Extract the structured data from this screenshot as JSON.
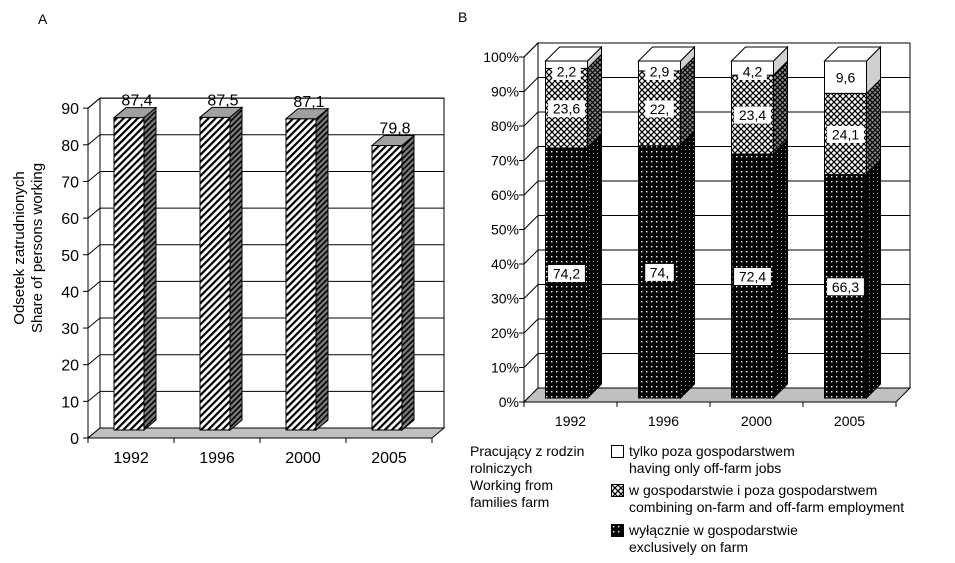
{
  "chart_data": [
    {
      "type": "bar",
      "panel_label": "A",
      "categories": [
        "1992",
        "1996",
        "2000",
        "2005"
      ],
      "values": [
        87.4,
        87.5,
        87.1,
        79.8
      ],
      "value_labels": [
        "87,4",
        "87,5",
        "87,1",
        "79,8"
      ],
      "ylabel": [
        "Odsetek zatrudnionych",
        "Share of persons working"
      ],
      "ylim": [
        0,
        90
      ],
      "yticks": [
        0,
        10,
        20,
        30,
        40,
        50,
        60,
        70,
        80,
        90
      ],
      "ytick_labels": [
        "0",
        "10",
        "20",
        "30",
        "40",
        "50",
        "60",
        "70",
        "80",
        "90"
      ],
      "grid": true,
      "style": "3d"
    },
    {
      "type": "bar",
      "stacked": true,
      "percent": true,
      "panel_label": "B",
      "categories": [
        "1992",
        "1996",
        "2000",
        "2005"
      ],
      "ylim": [
        0,
        100
      ],
      "yticks": [
        0,
        10,
        20,
        30,
        40,
        50,
        60,
        70,
        80,
        90,
        100
      ],
      "ytick_labels": [
        "0%",
        "10%",
        "20%",
        "30%",
        "40%",
        "50%",
        "60%",
        "70%",
        "80%",
        "90%",
        "100%"
      ],
      "grid": true,
      "style": "3d",
      "series": [
        {
          "name": "wyłącznie w gospodarstwie / exclusively on farm",
          "values": [
            74.2,
            74.0,
            72.4,
            66.3
          ],
          "labels": [
            "74,2",
            "74,",
            "72,4",
            "66,3"
          ]
        },
        {
          "name": "w gospodarstwie i poza gospodarstwem / combining on-farm and off-farm employment",
          "values": [
            23.6,
            22.0,
            23.4,
            24.1
          ],
          "labels": [
            "23,6",
            "22,",
            "23,4",
            "24,1"
          ]
        },
        {
          "name": "tylko poza gospodarstwem / having only off-farm jobs",
          "values": [
            2.2,
            2.9,
            4.2,
            9.6
          ],
          "labels": [
            "2,2",
            "2,9",
            "4,2",
            "9,6"
          ]
        }
      ],
      "legend": {
        "title": [
          "Pracujący z rodzin",
          "rolniczych",
          "Working from",
          "families farm"
        ],
        "placement": "bottom",
        "items": [
          {
            "lines": [
              "tylko poza gospodarstwem",
              "having only off-farm jobs"
            ],
            "pattern": "white"
          },
          {
            "lines": [
              "w gospodarstwie i poza gospodarstwem",
              "combining on-farm and off-farm employment"
            ],
            "pattern": "cross"
          },
          {
            "lines": [
              "wyłącznie w gospodarstwie",
              "exclusively on farm"
            ],
            "pattern": "dots"
          }
        ]
      }
    }
  ]
}
